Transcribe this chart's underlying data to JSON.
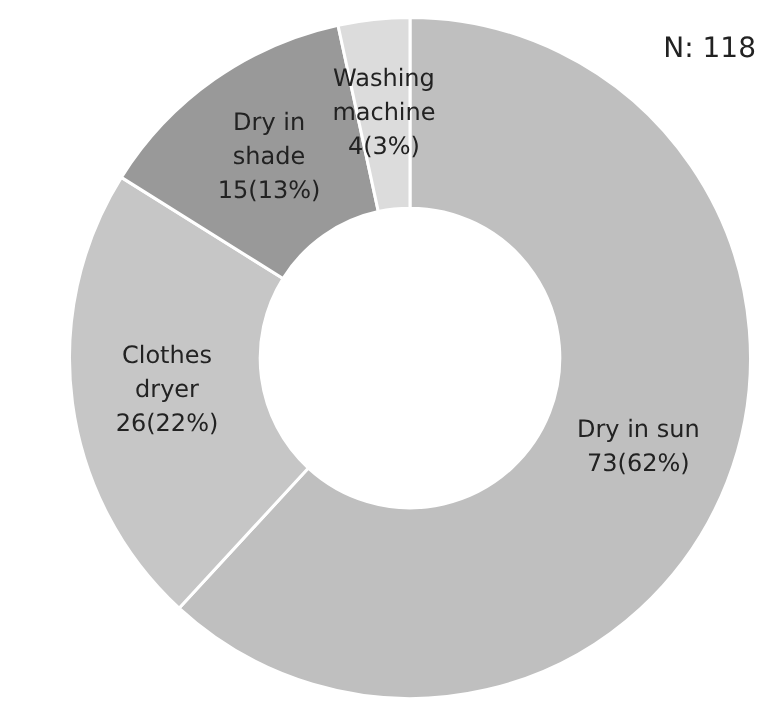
{
  "chart_data": {
    "type": "donut",
    "categories": [
      "Dry in sun",
      "Clothes dryer",
      "Dry in shade",
      "Washing machine"
    ],
    "values": [
      73,
      26,
      15,
      4
    ],
    "value_labels": [
      "73(62%)",
      "26(22%)",
      "15(13%)",
      "4(3%)"
    ],
    "colors": [
      "#bfbfbf",
      "#c6c6c6",
      "#999999",
      "#dcdcdc"
    ],
    "annotations": [
      "N: 118"
    ],
    "legend": false
  }
}
